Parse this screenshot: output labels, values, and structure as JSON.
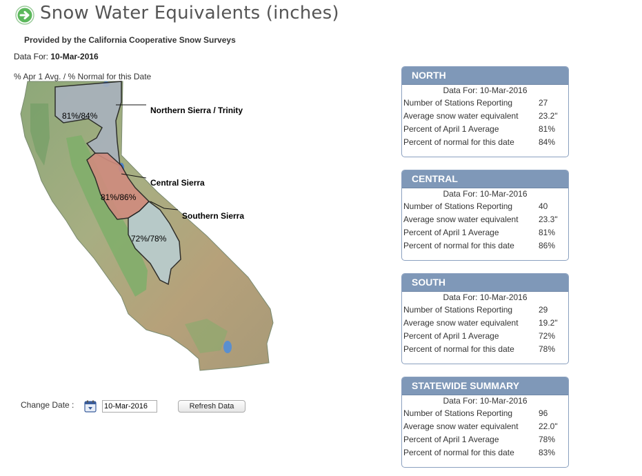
{
  "header": {
    "title": "Snow Water Equivalents (inches)",
    "provided_by": "Provided by the California Cooperative Snow Surveys",
    "data_for_label": "Data For:",
    "data_for_date": "10-Mar-2016"
  },
  "map": {
    "caption": "% Apr 1 Avg. / % Normal for this Date",
    "regions": [
      {
        "name": "Northern Sierra / Trinity",
        "pct": "81%/84%"
      },
      {
        "name": "Central Sierra",
        "pct": "81%/86%"
      },
      {
        "name": "Southern Sierra",
        "pct": "72%/78%"
      }
    ]
  },
  "panels": [
    {
      "title": "NORTH",
      "date_line": "Data For: 10-Mar-2016",
      "rows": [
        {
          "label": "Number of Stations Reporting",
          "value": "27"
        },
        {
          "label": "Average snow water equivalent",
          "value": "23.2\""
        },
        {
          "label": "Percent of April 1 Average",
          "value": "81%"
        },
        {
          "label": "Percent of normal for this date",
          "value": "84%"
        }
      ]
    },
    {
      "title": "CENTRAL",
      "date_line": "Data For: 10-Mar-2016",
      "rows": [
        {
          "label": "Number of Stations Reporting",
          "value": "40"
        },
        {
          "label": "Average snow water equivalent",
          "value": "23.3\""
        },
        {
          "label": "Percent of April 1 Average",
          "value": "81%"
        },
        {
          "label": "Percent of normal for this date",
          "value": "86%"
        }
      ]
    },
    {
      "title": "SOUTH",
      "date_line": "Data For: 10-Mar-2016",
      "rows": [
        {
          "label": "Number of Stations Reporting",
          "value": "29"
        },
        {
          "label": "Average snow water equivalent",
          "value": "19.2\""
        },
        {
          "label": "Percent of April 1 Average",
          "value": "72%"
        },
        {
          "label": "Percent of normal for this date",
          "value": "78%"
        }
      ]
    },
    {
      "title": "STATEWIDE SUMMARY",
      "date_line": "Data For: 10-Mar-2016",
      "rows": [
        {
          "label": "Number of Stations Reporting",
          "value": "96"
        },
        {
          "label": "Average snow water equivalent",
          "value": "22.0\""
        },
        {
          "label": "Percent of April 1 Average",
          "value": "78%"
        },
        {
          "label": "Percent of normal for this date",
          "value": "83%"
        }
      ]
    }
  ],
  "controls": {
    "change_date_label": "Change Date :",
    "date_value": "10-Mar-2016",
    "refresh_label": "Refresh Data",
    "calendar_icon": "calendar-icon"
  },
  "colors": {
    "panel_header": "#7f98b8",
    "icon_green": "#4caf50",
    "north_region": "#a9b2be",
    "central_region": "#d08b7e",
    "south_region": "#b9cdd0"
  }
}
